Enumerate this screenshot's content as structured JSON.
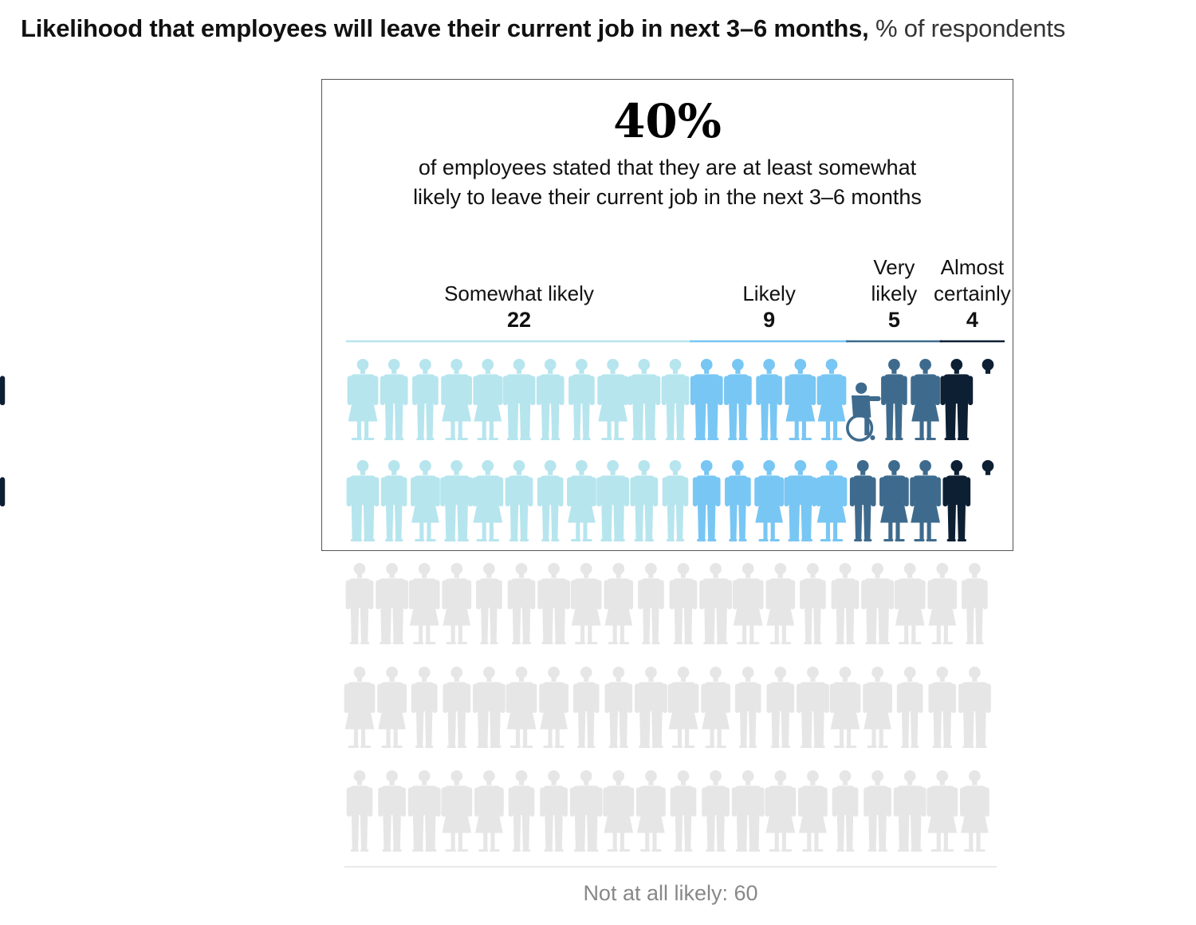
{
  "title": {
    "bold": "Likelihood that employees will leave their current job in next 3–6 months,",
    "unit": "% of respondents"
  },
  "callout": {
    "stat": "40%",
    "text_line1": "of employees stated that they are at least somewhat",
    "text_line2": "likely to leave their current job in the next 3–6 months"
  },
  "chart_data": {
    "type": "pictograph",
    "unit": "% of respondents",
    "categories": [
      {
        "label_lines": [
          "Somewhat likely"
        ],
        "value": 22,
        "color": "#b6e5ee"
      },
      {
        "label_lines": [
          "Likely"
        ],
        "value": 9,
        "color": "#78c6f3"
      },
      {
        "label_lines": [
          "Very",
          "likely"
        ],
        "value": 5,
        "color": "#3e6b8d"
      },
      {
        "label_lines": [
          "Almost",
          "certainly"
        ],
        "value": 4,
        "color": "#0d1f33"
      }
    ],
    "other": {
      "label": "Not at all likely: 60",
      "value": 60,
      "color": "#e6e6e6"
    }
  }
}
